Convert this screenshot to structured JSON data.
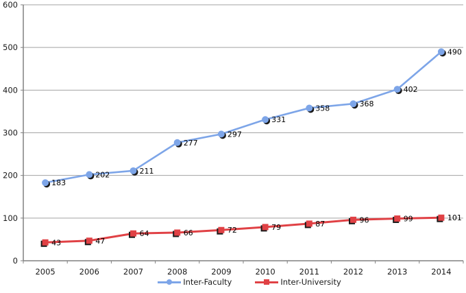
{
  "chart_data": {
    "type": "line",
    "categories": [
      "2005",
      "2006",
      "2007",
      "2008",
      "2009",
      "2010",
      "2011",
      "2012",
      "2013",
      "2014"
    ],
    "series": [
      {
        "name": "Inter-Faculty",
        "values": [
          183,
          202,
          211,
          277,
          297,
          331,
          358,
          368,
          402,
          490
        ],
        "color": "#7DA5E8",
        "marker": "circle",
        "line_width": 2.6
      },
      {
        "name": "Inter-University",
        "values": [
          43,
          47,
          64,
          66,
          72,
          79,
          87,
          96,
          99,
          101
        ],
        "color": "#E04145",
        "marker": "square",
        "line_width": 3
      }
    ],
    "ylim": [
      0,
      600
    ],
    "ytick_step": 100,
    "xlabel": "",
    "ylabel": "",
    "grid": "horizontal",
    "grid_color": "#A3A3A3",
    "axis_color": "#808080",
    "shadow_color": "#1A1A1A",
    "text_color": "#000000",
    "legend_position": "bottom",
    "data_labels": true
  }
}
